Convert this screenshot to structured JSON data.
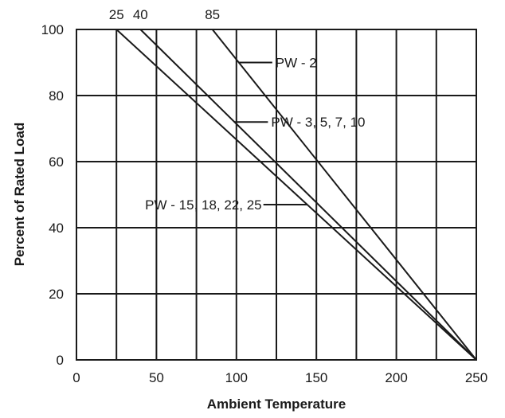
{
  "chart_data": {
    "type": "line",
    "title": "",
    "xlabel": "Ambient Temperature",
    "ylabel": "Percent of Rated Load",
    "xlim": [
      0,
      250
    ],
    "ylim": [
      0,
      100
    ],
    "x_ticks": [
      "0",
      "50",
      "100",
      "150",
      "200",
      "250"
    ],
    "y_ticks": [
      "0",
      "20",
      "40",
      "60",
      "80",
      "100"
    ],
    "grid": true,
    "top_labels": [
      "25",
      "40",
      "85"
    ],
    "series": [
      {
        "name": "PW - 2",
        "points": [
          [
            85,
            100
          ],
          [
            250,
            0
          ]
        ]
      },
      {
        "name": "PW - 3, 5, 7, 10",
        "points": [
          [
            40,
            100
          ],
          [
            250,
            0
          ]
        ]
      },
      {
        "name": "PW - 15, 18, 22, 25",
        "points": [
          [
            25,
            100
          ],
          [
            250,
            0
          ]
        ]
      }
    ],
    "annotations": [
      {
        "text": "PW - 2",
        "series": 0,
        "y": 90,
        "side": "right"
      },
      {
        "text": "PW - 3, 5, 7, 10",
        "series": 1,
        "y": 72,
        "side": "right"
      },
      {
        "text": "PW - 15, 18, 22, 25",
        "series": 2,
        "y": 47,
        "side": "left"
      }
    ]
  }
}
